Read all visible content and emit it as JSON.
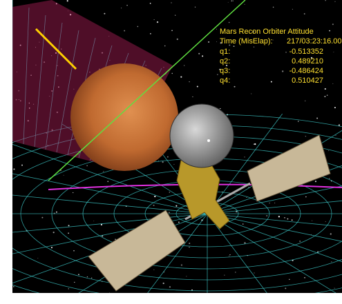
{
  "overlay": {
    "title": "Mars Recon Orbiter Attitude",
    "time_label": "Time (MisElap):",
    "time_value": "217/03:23:16.00",
    "rows": [
      {
        "label": "q1:",
        "value": "-0.513352"
      },
      {
        "label": "q2:",
        "value": "0.489210"
      },
      {
        "label": "q3:",
        "value": "-0.486424"
      },
      {
        "label": "q4:",
        "value": "0.510427"
      }
    ]
  }
}
